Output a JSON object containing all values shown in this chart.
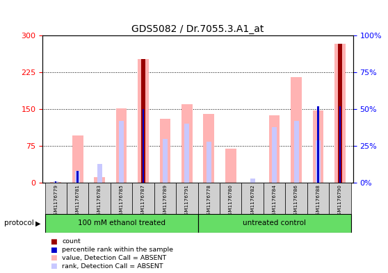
{
  "title": "GDS5082 / Dr.7055.3.A1_at",
  "samples": [
    "GSM1176779",
    "GSM1176781",
    "GSM1176783",
    "GSM1176785",
    "GSM1176787",
    "GSM1176789",
    "GSM1176791",
    "GSM1176778",
    "GSM1176780",
    "GSM1176782",
    "GSM1176784",
    "GSM1176786",
    "GSM1176788",
    "GSM1176790"
  ],
  "group1_count": 7,
  "group2_count": 7,
  "group1_label": "100 mM ethanol treated",
  "group2_label": "untreated control",
  "protocol_label": "protocol",
  "left_ylim": [
    0,
    300
  ],
  "left_yticks": [
    0,
    75,
    150,
    225,
    300
  ],
  "right_ylim": [
    0,
    100
  ],
  "right_yticks": [
    0,
    25,
    50,
    75,
    100
  ],
  "right_yticklabels": [
    "0%",
    "25%",
    "50%",
    "75%",
    "100%"
  ],
  "value_absent": [
    2.0,
    97.0,
    12.0,
    152.0,
    252.0,
    130.0,
    160.0,
    140.0,
    70.0,
    0.0,
    138.0,
    215.0,
    148.0,
    283.0
  ],
  "rank_absent": [
    1.0,
    8.0,
    13.0,
    42.0,
    0.0,
    30.0,
    40.0,
    28.0,
    0.0,
    3.0,
    38.0,
    42.0,
    29.0,
    0.0
  ],
  "count_value": [
    0.0,
    0.0,
    0.0,
    0.0,
    252.0,
    0.0,
    0.0,
    0.0,
    0.0,
    0.0,
    0.0,
    0.0,
    0.0,
    283.0
  ],
  "percentile_value": [
    1.0,
    8.0,
    0.0,
    0.0,
    50.0,
    0.0,
    0.0,
    0.0,
    0.0,
    0.0,
    0.0,
    0.0,
    52.0,
    52.0
  ],
  "background_color": "#ffffff",
  "plot_bg_color": "#ffffff",
  "bar_color_absent": "#ffb3b3",
  "bar_color_rank_absent": "#c8c8ff",
  "bar_color_count": "#990000",
  "bar_color_percentile": "#0000cc",
  "sample_bg_color": "#d0d0d0",
  "group_bg_color": "#66dd66",
  "bw_main": 0.5,
  "bw_rank": 0.22,
  "bw_count": 0.18,
  "bw_pct": 0.08
}
